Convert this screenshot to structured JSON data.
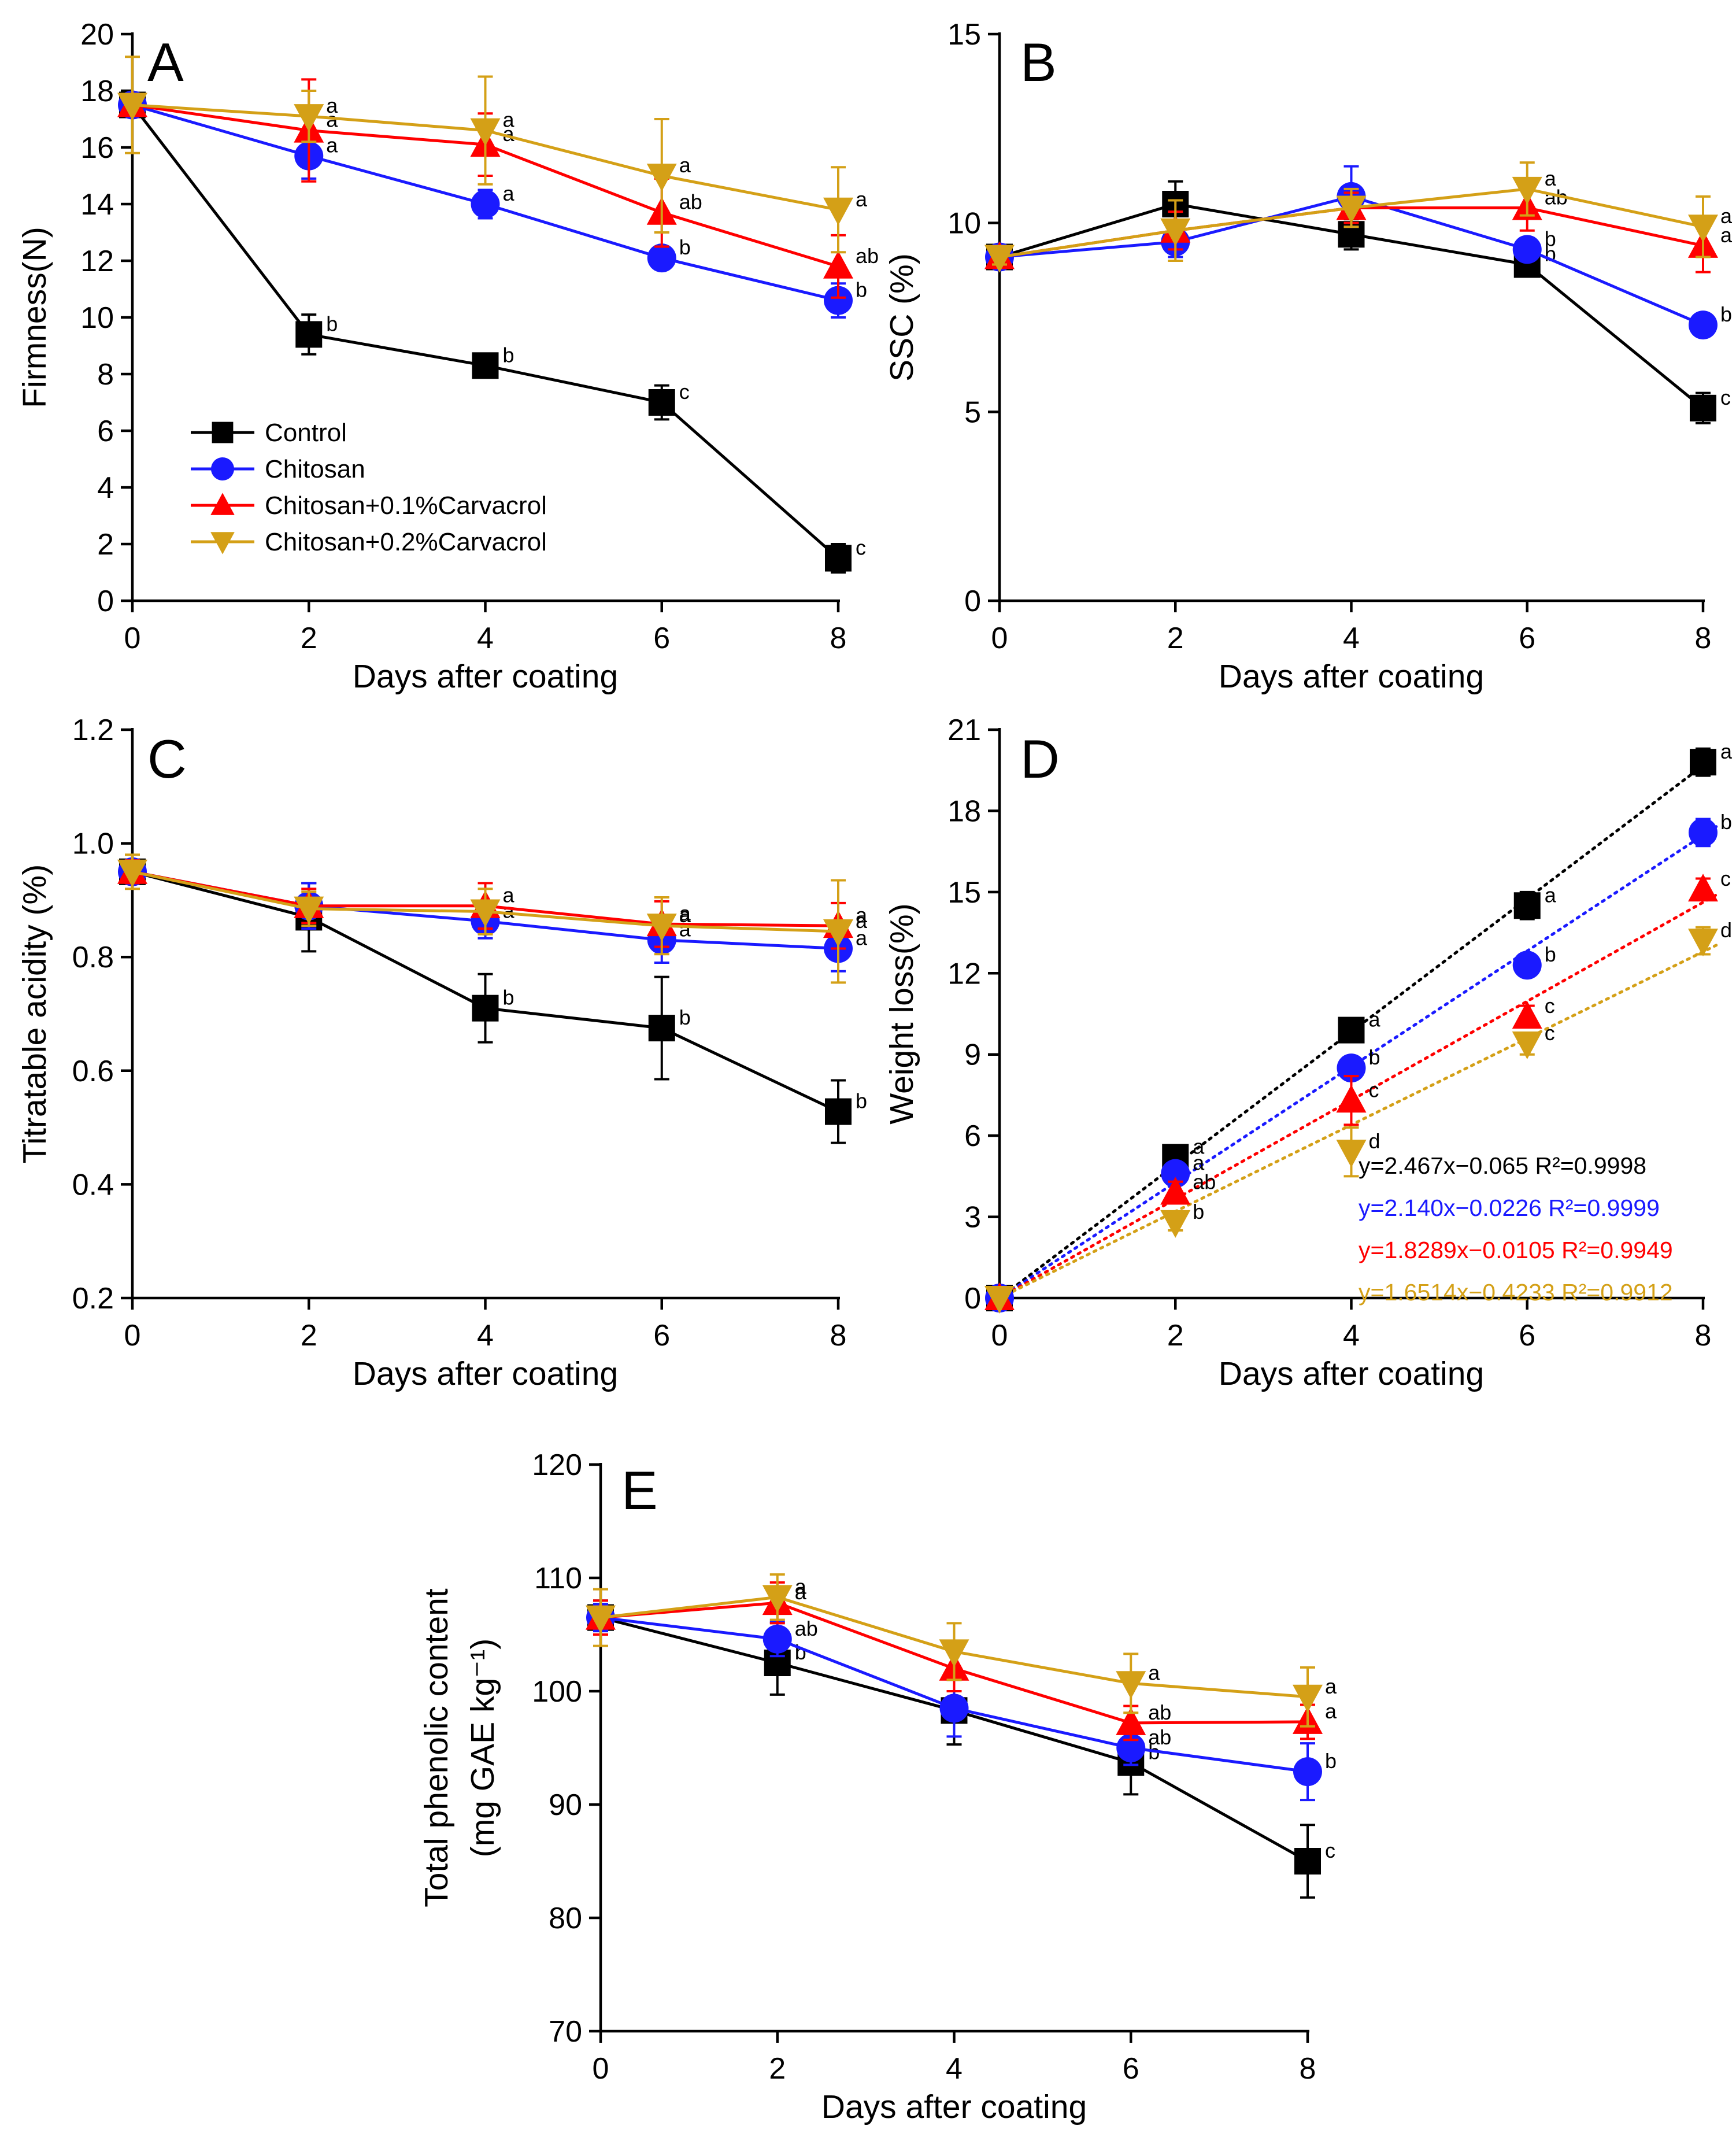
{
  "chart_data": [
    {
      "id": "A",
      "type": "line",
      "panel_label": "A",
      "xlabel": "Days after coating",
      "ylabel": "Firmness(N)",
      "xlim": [
        0,
        8
      ],
      "ylim": [
        0,
        20
      ],
      "x_ticks": [
        0,
        2,
        4,
        6,
        8
      ],
      "y_ticks": [
        0,
        2,
        4,
        6,
        8,
        10,
        12,
        14,
        16,
        18,
        20
      ],
      "x": [
        0,
        2,
        4,
        6,
        8
      ],
      "series": [
        {
          "name": "Control",
          "color": "#000000",
          "marker": "square",
          "values": [
            17.5,
            9.4,
            8.3,
            7.0,
            1.5
          ],
          "err": [
            0.3,
            0.7,
            0.3,
            0.6,
            0.5
          ],
          "labels": [
            "",
            "b",
            "b",
            "c",
            "c"
          ]
        },
        {
          "name": "Chitosan",
          "color": "#1a1aff",
          "marker": "circle",
          "values": [
            17.5,
            15.7,
            14.0,
            12.1,
            10.6
          ],
          "err": [
            0.3,
            0.8,
            0.5,
            0.4,
            0.6
          ],
          "labels": [
            "",
            "a",
            "a",
            "b",
            "b"
          ]
        },
        {
          "name": "Chitosan+0.1%Carvacrol",
          "color": "#ff0000",
          "marker": "triangle-up",
          "values": [
            17.5,
            16.6,
            16.1,
            13.7,
            11.8
          ],
          "err": [
            0.3,
            1.8,
            1.1,
            1.2,
            1.1
          ],
          "labels": [
            "",
            "a",
            "a",
            "ab",
            "ab"
          ]
        },
        {
          "name": "Chitosan+0.2%Carvacrol",
          "color": "#d4a017",
          "marker": "triangle-down",
          "values": [
            17.5,
            17.1,
            16.6,
            15.0,
            13.8
          ],
          "err": [
            1.7,
            0.9,
            1.9,
            2.0,
            1.5
          ],
          "labels": [
            "",
            "a",
            "a",
            "a",
            "a"
          ]
        }
      ],
      "legend": [
        "Control",
        "Chitosan",
        "Chitosan+0.1%Carvacrol",
        "Chitosan+0.2%Carvacrol"
      ]
    },
    {
      "id": "B",
      "type": "line",
      "panel_label": "B",
      "xlabel": "Days after coating",
      "ylabel": "SSC (%)",
      "xlim": [
        0,
        8
      ],
      "ylim": [
        0,
        15
      ],
      "x_ticks": [
        0,
        2,
        4,
        6,
        8
      ],
      "y_ticks": [
        0,
        5,
        10,
        15
      ],
      "x": [
        0,
        2,
        4,
        6,
        8
      ],
      "series": [
        {
          "name": "Control",
          "color": "#000000",
          "marker": "square",
          "values": [
            9.1,
            10.5,
            9.7,
            8.9,
            5.1
          ],
          "err": [
            0.2,
            0.6,
            0.4,
            0.3,
            0.4
          ],
          "labels": [
            "",
            "",
            "",
            "b",
            "c"
          ]
        },
        {
          "name": "Chitosan",
          "color": "#1a1aff",
          "marker": "circle",
          "values": [
            9.1,
            9.5,
            10.7,
            9.3,
            7.3
          ],
          "err": [
            0.2,
            0.4,
            0.8,
            0.3,
            0.2
          ],
          "labels": [
            "",
            "",
            "",
            "b",
            "b"
          ]
        },
        {
          "name": "Chitosan+0.1%Carvacrol",
          "color": "#ff0000",
          "marker": "triangle-up",
          "values": [
            9.1,
            9.8,
            10.4,
            10.4,
            9.4
          ],
          "err": [
            0.2,
            0.5,
            0.4,
            0.6,
            0.7
          ],
          "labels": [
            "",
            "",
            "",
            "ab",
            "a"
          ]
        },
        {
          "name": "Chitosan+0.2%Carvacrol",
          "color": "#d4a017",
          "marker": "triangle-down",
          "values": [
            9.1,
            9.8,
            10.4,
            10.9,
            9.9
          ],
          "err": [
            0.2,
            0.8,
            0.5,
            0.7,
            0.8
          ],
          "labels": [
            "",
            "",
            "",
            "a",
            "a"
          ]
        }
      ]
    },
    {
      "id": "C",
      "type": "line",
      "panel_label": "C",
      "xlabel": "Days after coating",
      "ylabel": "Titratable acidity (%)",
      "xlim": [
        0,
        8
      ],
      "ylim": [
        0.2,
        1.2
      ],
      "x_ticks": [
        0,
        2,
        4,
        6,
        8
      ],
      "y_ticks": [
        "0.2",
        "0.4",
        "0.6",
        "0.8",
        "1.0",
        "1.2"
      ],
      "x": [
        0,
        2,
        4,
        6,
        8
      ],
      "series": [
        {
          "name": "Control",
          "color": "#000000",
          "marker": "square",
          "values": [
            0.95,
            0.87,
            0.71,
            0.675,
            0.528
          ],
          "err": [
            0.02,
            0.06,
            0.06,
            0.09,
            0.055
          ],
          "labels": [
            "",
            "",
            "b",
            "b",
            "b"
          ]
        },
        {
          "name": "Chitosan",
          "color": "#1a1aff",
          "marker": "circle",
          "values": [
            0.95,
            0.89,
            0.863,
            0.83,
            0.815
          ],
          "err": [
            0.02,
            0.04,
            0.03,
            0.04,
            0.04
          ],
          "labels": [
            "",
            "",
            "a",
            "a",
            "a"
          ]
        },
        {
          "name": "Chitosan+0.1%Carvacrol",
          "color": "#ff0000",
          "marker": "triangle-up",
          "values": [
            0.95,
            0.89,
            0.89,
            0.858,
            0.855
          ],
          "err": [
            0.02,
            0.03,
            0.04,
            0.04,
            0.04
          ],
          "labels": [
            "",
            "",
            "a",
            "a",
            "a"
          ]
        },
        {
          "name": "Chitosan+0.2%Carvacrol",
          "color": "#d4a017",
          "marker": "triangle-down",
          "values": [
            0.95,
            0.885,
            0.88,
            0.855,
            0.845
          ],
          "err": [
            0.03,
            0.03,
            0.04,
            0.05,
            0.09
          ],
          "labels": [
            "",
            "",
            "",
            "a",
            "a"
          ]
        }
      ]
    },
    {
      "id": "D",
      "type": "scatter",
      "panel_label": "D",
      "xlabel": "Days after coating",
      "ylabel": "Weight loss(%)",
      "xlim": [
        0,
        8
      ],
      "ylim": [
        0,
        21
      ],
      "x_ticks": [
        0,
        2,
        4,
        6,
        8
      ],
      "y_ticks": [
        0,
        3,
        6,
        9,
        12,
        15,
        18,
        21
      ],
      "x": [
        0,
        2,
        4,
        6,
        8
      ],
      "series": [
        {
          "name": "Control",
          "color": "#000000",
          "marker": "square",
          "values": [
            0,
            5.2,
            9.9,
            14.5,
            19.8
          ],
          "err": [
            0,
            0.3,
            0.3,
            0.5,
            0.5
          ],
          "labels": [
            "",
            "a",
            "a",
            "a",
            "a"
          ],
          "fit": {
            "slope": 2.467,
            "intercept": -0.065
          },
          "equation": "y=2.467x−0.065 R²=0.9998"
        },
        {
          "name": "Chitosan",
          "color": "#1a1aff",
          "marker": "circle",
          "values": [
            0,
            4.6,
            8.5,
            12.3,
            17.2
          ],
          "err": [
            0,
            0.3,
            0.4,
            0.4,
            0.5
          ],
          "labels": [
            "",
            "a",
            "b",
            "b",
            "b"
          ],
          "fit": {
            "slope": 2.14,
            "intercept": -0.0226
          },
          "equation": "y=2.140x−0.0226 R²=0.9999"
        },
        {
          "name": "Chitosan+0.1%Carvacrol",
          "color": "#ff0000",
          "marker": "triangle-up",
          "values": [
            0,
            3.9,
            7.3,
            10.4,
            15.1
          ],
          "err": [
            0,
            0.4,
            0.9,
            0.4,
            0.4
          ],
          "labels": [
            "",
            "ab",
            "c",
            "c",
            "c"
          ],
          "fit": {
            "slope": 1.8289,
            "intercept": -0.0105
          },
          "equation": "y=1.8289x−0.0105 R²=0.9949"
        },
        {
          "name": "Chitosan+0.2%Carvacrol",
          "color": "#d4a017",
          "marker": "triangle-down",
          "values": [
            0,
            2.8,
            5.4,
            9.4,
            13.2
          ],
          "err": [
            0,
            0.3,
            0.9,
            0.4,
            0.5
          ],
          "labels": [
            "",
            "b",
            "d",
            "c",
            "d"
          ],
          "fit": {
            "slope": 1.6514,
            "intercept": -0.4233
          },
          "equation": "y=1.6514x−0.4233 R²=0.9912"
        }
      ]
    },
    {
      "id": "E",
      "type": "line",
      "panel_label": "E",
      "xlabel": "Days after coating",
      "ylabel": "Total phenolic content",
      "ylabel2": "(mg GAE kg⁻¹)",
      "xlim": [
        0,
        8
      ],
      "ylim": [
        70,
        120
      ],
      "x_ticks": [
        0,
        2,
        4,
        6,
        8
      ],
      "y_ticks": [
        70,
        80,
        90,
        100,
        110,
        120
      ],
      "x": [
        0,
        2,
        4,
        6,
        8
      ],
      "series": [
        {
          "name": "Control",
          "color": "#000000",
          "marker": "square",
          "values": [
            106.5,
            102.5,
            98.3,
            93.7,
            85.0
          ],
          "err": [
            1.5,
            2.8,
            3.0,
            2.8,
            3.2
          ],
          "labels": [
            "",
            "b",
            "",
            "b",
            "c"
          ]
        },
        {
          "name": "Chitosan",
          "color": "#1a1aff",
          "marker": "circle",
          "values": [
            106.5,
            104.6,
            98.5,
            95.0,
            92.9
          ],
          "err": [
            1.2,
            1.5,
            2.5,
            1.5,
            2.5
          ],
          "labels": [
            "",
            "ab",
            "",
            "ab",
            "b"
          ]
        },
        {
          "name": "Chitosan+0.1%Carvacrol",
          "color": "#ff0000",
          "marker": "triangle-up",
          "values": [
            106.5,
            107.8,
            102.0,
            97.2,
            97.3
          ],
          "err": [
            1.5,
            1.8,
            2.0,
            1.5,
            1.5
          ],
          "labels": [
            "",
            "a",
            "",
            "ab",
            "a"
          ]
        },
        {
          "name": "Chitosan+0.2%Carvacrol",
          "color": "#d4a017",
          "marker": "triangle-down",
          "values": [
            106.5,
            108.3,
            103.5,
            100.7,
            99.5
          ],
          "err": [
            2.5,
            2.0,
            2.5,
            2.6,
            2.6
          ],
          "labels": [
            "",
            "a",
            "",
            "a",
            "a"
          ]
        }
      ]
    }
  ]
}
